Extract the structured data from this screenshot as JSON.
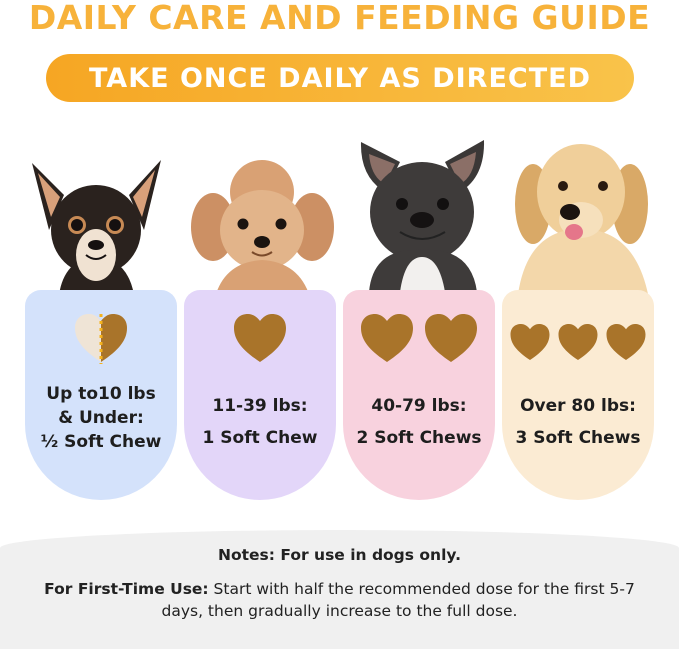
{
  "header": {
    "title": "DAILY CARE AND FEEDING GUIDE",
    "banner": "TAKE ONCE DAILY AS DIRECTED"
  },
  "colors": {
    "title": "#f7b23a",
    "banner": "#f7ae2d",
    "card_blue": "#d4e2fb",
    "card_purple": "#e3d6f9",
    "card_pink": "#f8d2de",
    "card_cream": "#fbebd3",
    "chew": "#a9742a"
  },
  "dosage": [
    {
      "dog": "chihuahua",
      "line1": "Up to10 lbs",
      "line2": "& Under:",
      "line3": "½ Soft Chew",
      "chews": 0.5
    },
    {
      "dog": "poodle",
      "line1": "11-39 lbs:",
      "line2": "1 Soft Chew",
      "chews": 1
    },
    {
      "dog": "french-bulldog",
      "line1": "40-79 lbs:",
      "line2": "2 Soft Chews",
      "chews": 2
    },
    {
      "dog": "golden-retriever",
      "line1": "Over 80 lbs:",
      "line2": "3 Soft Chews",
      "chews": 3
    }
  ],
  "notes": {
    "title": "Notes: For use in dogs only.",
    "first_time_label": "For First-Time Use:",
    "first_time_text": " Start with half the recommended dose for the first 5-7 days, then gradually increase to the full dose."
  }
}
